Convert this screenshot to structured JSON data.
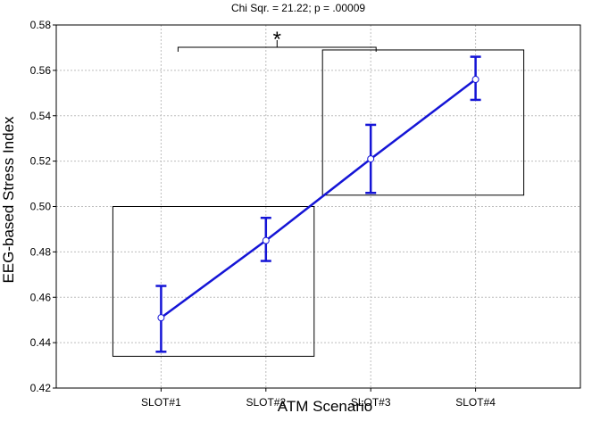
{
  "chart_data": {
    "type": "line",
    "subtitle": "Chi Sqr. = 21.22; p = .00009",
    "xlabel": "ATM Scenario",
    "ylabel": "EEG-based Stress Index",
    "categories": [
      "SLOT#1",
      "SLOT#2",
      "SLOT#3",
      "SLOT#4"
    ],
    "series": [
      {
        "values": [
          0.451,
          0.485,
          0.521,
          0.556
        ],
        "err_low": [
          0.436,
          0.476,
          0.506,
          0.547
        ],
        "err_high": [
          0.465,
          0.495,
          0.536,
          0.566
        ],
        "color": "#1515d6"
      }
    ],
    "ylim": [
      0.42,
      0.58
    ],
    "yticks": [
      "0.42",
      "0.44",
      "0.46",
      "0.48",
      "0.50",
      "0.52",
      "0.54",
      "0.56",
      "0.58"
    ],
    "grid": true,
    "groups": [
      {
        "categories": [
          "SLOT#1",
          "SLOT#2"
        ],
        "ylim": [
          0.434,
          0.5
        ]
      },
      {
        "categories": [
          "SLOT#3",
          "SLOT#4"
        ],
        "ylim": [
          0.505,
          0.569
        ]
      }
    ],
    "significance": {
      "between": [
        "SLOT#1",
        "SLOT#3"
      ],
      "label": "*"
    }
  }
}
